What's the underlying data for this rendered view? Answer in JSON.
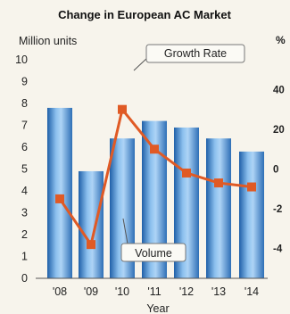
{
  "chart_data": {
    "type": "bar",
    "title": "Change in European AC Market",
    "xlabel": "Year",
    "ylabel": "Million units",
    "ylabel_right": "%",
    "categories": [
      "'08",
      "'09",
      "'10",
      "'11",
      "'12",
      "'13",
      "'14"
    ],
    "ylim": [
      0,
      10
    ],
    "yticks": [
      0,
      1,
      2,
      3,
      4,
      5,
      6,
      7,
      8,
      9,
      10
    ],
    "ylim_right": [
      -55,
      55
    ],
    "yticks_right": [
      "40",
      "20",
      "0",
      "-2",
      "-4"
    ],
    "grid": false,
    "legend": "none",
    "series": [
      {
        "name": "Volume",
        "type": "bar",
        "axis": "left",
        "color": "#4f8fd2",
        "values": [
          7.8,
          4.9,
          6.4,
          7.2,
          6.9,
          6.4,
          5.8
        ]
      },
      {
        "name": "Growth Rate",
        "type": "line",
        "axis": "right",
        "color": "#e05a25",
        "values": [
          -15,
          -38,
          30,
          10,
          -2,
          -7,
          -9
        ]
      }
    ],
    "annotations": {
      "growth_label": "Growth Rate",
      "volume_label": "Volume"
    }
  }
}
